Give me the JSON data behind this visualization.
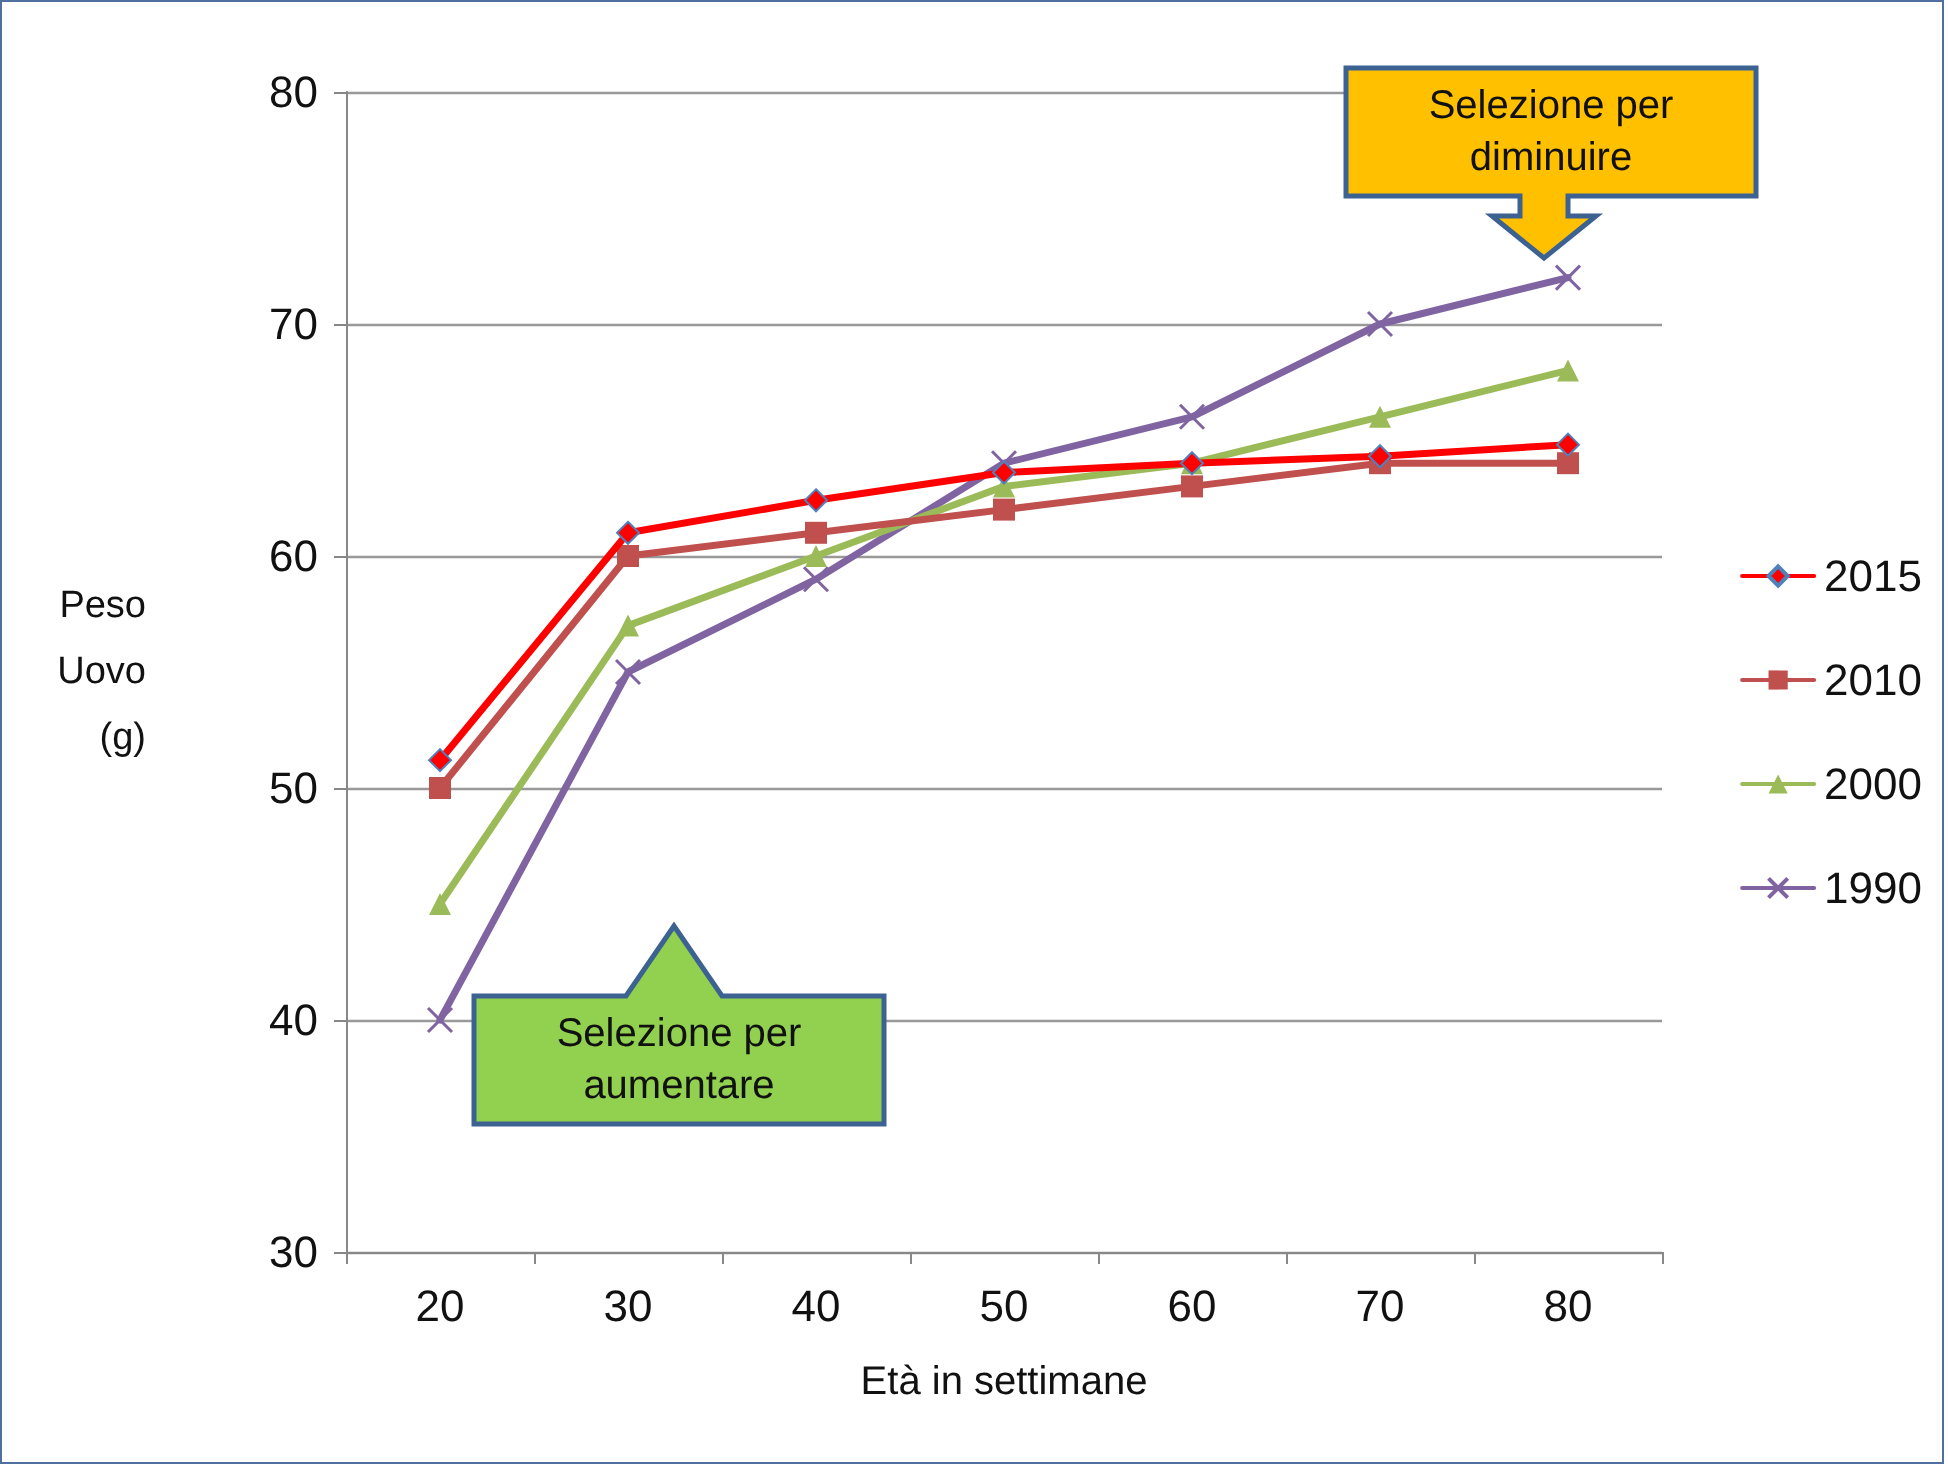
{
  "chart_data": {
    "type": "line",
    "xlabel": "Età in settimane",
    "ylabel": "Peso\nUovo\n(g)",
    "categories": [
      "20",
      "30",
      "40",
      "50",
      "60",
      "70",
      "80"
    ],
    "series": [
      {
        "name": "2015",
        "color": "#ff0000",
        "marker": "diamond",
        "values": [
          51.2,
          61,
          62.4,
          63.6,
          64,
          64.3,
          64.8
        ]
      },
      {
        "name": "2010",
        "color": "#c0504d",
        "marker": "square",
        "values": [
          50,
          60,
          61,
          62,
          63,
          64,
          64
        ]
      },
      {
        "name": "2000",
        "color": "#9bbb59",
        "marker": "triangle",
        "values": [
          45,
          57,
          60,
          63,
          64,
          66,
          68
        ]
      },
      {
        "name": "1990",
        "color": "#8064a2",
        "marker": "cross",
        "values": [
          40,
          55,
          59,
          64,
          66,
          70,
          72
        ]
      }
    ],
    "ylim": [
      30,
      80
    ],
    "yticks": [
      30,
      40,
      50,
      60,
      70,
      80
    ],
    "grid": "y",
    "legend": "right",
    "annotations": [
      "Selezione per diminuire",
      "Selezione per aumentare"
    ]
  }
}
